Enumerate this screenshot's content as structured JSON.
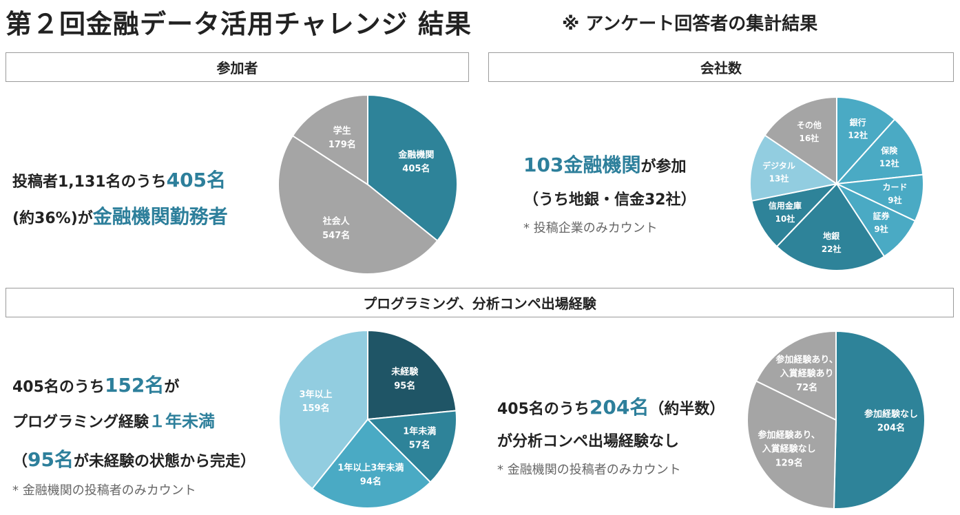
{
  "title": "第２回金融データ活用チャレンジ 結果",
  "title_note": "※ アンケート回答者の集計結果",
  "sections": {
    "participants": "参加者",
    "companies": "会社数",
    "experience": "プログラミング、分析コンペ出場経験"
  },
  "participants": {
    "line1_prefix": "投稿者1,131名のうち",
    "line1_highlight": "405名",
    "line2_prefix": "(約36%)が",
    "line2_highlight": "金融機関勤務者"
  },
  "companies": {
    "line1_highlight": "103金融機関",
    "line1_suffix": "が参加",
    "line2": "（うち地銀・信金32社）",
    "note": "* 投稿企業のみカウント"
  },
  "programming": {
    "line1_prefix": "405名のうち",
    "line1_highlight": "152名",
    "line1_suffix": "が",
    "line2_prefix": "プログラミング経験",
    "line2_highlight": "１年未満",
    "line3_prefix": "（",
    "line3_highlight": "95名",
    "line3_suffix": "が未経験の状態から完走）",
    "note": "* 金融機関の投稿者のみカウント"
  },
  "competition": {
    "line1_prefix": "405名のうち",
    "line1_highlight": "204名",
    "line1_suffix": "（約半数）",
    "line2": "が分析コンペ出場経験なし",
    "note": "* 金融機関の投稿者のみカウント"
  },
  "chart_data": [
    {
      "type": "pie",
      "slices": [
        {
          "label": "金融機関",
          "value_label": "405名",
          "value": 405,
          "color": "#2e8399",
          "text_color": "#ffffff"
        },
        {
          "label": "社会人",
          "value_label": "547名",
          "value": 547,
          "color": "#a5a5a5",
          "text_color": "#ffffff"
        },
        {
          "label": "学生",
          "value_label": "179名",
          "value": 179,
          "color": "#a5a5a5",
          "text_color": "#ffffff"
        }
      ]
    },
    {
      "type": "pie",
      "slices": [
        {
          "label": "銀行",
          "value_label": "12社",
          "value": 12,
          "color": "#4aaac4",
          "text_color": "#ffffff"
        },
        {
          "label": "保険",
          "value_label": "12社",
          "value": 12,
          "color": "#4aaac4",
          "text_color": "#ffffff"
        },
        {
          "label": "カード",
          "value_label": "9社",
          "value": 9,
          "color": "#4aaac4",
          "text_color": "#ffffff"
        },
        {
          "label": "証券",
          "value_label": "9社",
          "value": 9,
          "color": "#4aaac4",
          "text_color": "#ffffff"
        },
        {
          "label": "地銀",
          "value_label": "22社",
          "value": 22,
          "color": "#2e8399",
          "text_color": "#ffffff"
        },
        {
          "label": "信用金庫",
          "value_label": "10社",
          "value": 10,
          "color": "#2e8399",
          "text_color": "#ffffff"
        },
        {
          "label": "デジタル",
          "value_label": "13社",
          "value": 13,
          "color": "#92cde0",
          "text_color": "#ffffff"
        },
        {
          "label": "その他",
          "value_label": "16社",
          "value": 16,
          "color": "#a5a5a5",
          "text_color": "#ffffff"
        }
      ]
    },
    {
      "type": "pie",
      "slices": [
        {
          "label": "未経験",
          "value_label": "95名",
          "value": 95,
          "color": "#1f5566",
          "text_color": "#ffffff"
        },
        {
          "label": "1年未満",
          "value_label": "57名",
          "value": 57,
          "color": "#2e8399",
          "text_color": "#ffffff"
        },
        {
          "label": "1年以上3年未満",
          "value_label": "94名",
          "value": 94,
          "color": "#4aaac4",
          "text_color": "#ffffff"
        },
        {
          "label": "3年以上",
          "value_label": "159名",
          "value": 159,
          "color": "#92cde0",
          "text_color": "#ffffff"
        }
      ]
    },
    {
      "type": "pie",
      "slices": [
        {
          "label": "参加経験なし",
          "value_label": "204名",
          "value": 204,
          "color": "#2e8399",
          "text_color": "#ffffff"
        },
        {
          "label": "参加経験あり、\n入賞経験なし",
          "value_label": "129名",
          "value": 129,
          "color": "#a5a5a5",
          "text_color": "#ffffff"
        },
        {
          "label": "参加経験あり、\n入賞経験あり",
          "value_label": "72名",
          "value": 72,
          "color": "#a5a5a5",
          "text_color": "#ffffff"
        }
      ]
    }
  ]
}
